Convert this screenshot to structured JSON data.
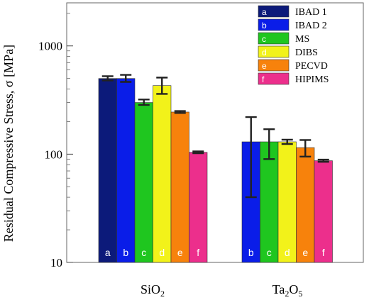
{
  "chart_data": {
    "type": "bar",
    "scale": "log",
    "ylim": [
      10,
      2500
    ],
    "ylabel": "Residual Compressive Stress, σ [MPa]",
    "y_ticks": [
      {
        "value": 10,
        "label": "10"
      },
      {
        "value": 100,
        "label": "100"
      },
      {
        "value": 1000,
        "label": "1000"
      }
    ],
    "categories": [
      {
        "label": "SiO",
        "sub": "2"
      },
      {
        "label": "Ta",
        "sub": "2",
        "label2": "O",
        "sub2": "5"
      }
    ],
    "series": [
      {
        "name": "IBAD 1",
        "code": "a",
        "color": "#0c1a7a",
        "values": [
          500,
          null
        ],
        "err_low": [
          480,
          null
        ],
        "err_high": [
          525,
          null
        ]
      },
      {
        "name": "IBAD 2",
        "code": "b",
        "color": "#0a1de8",
        "values": [
          500,
          130
        ],
        "err_low": [
          465,
          40
        ],
        "err_high": [
          540,
          220
        ]
      },
      {
        "name": "MS",
        "code": "c",
        "color": "#1fc61f",
        "values": [
          300,
          130
        ],
        "err_low": [
          285,
          90
        ],
        "err_high": [
          320,
          170
        ]
      },
      {
        "name": "DIBS",
        "code": "d",
        "color": "#f2f21a",
        "values": [
          430,
          130
        ],
        "err_low": [
          360,
          124
        ],
        "err_high": [
          510,
          136
        ]
      },
      {
        "name": "PECVD",
        "code": "e",
        "color": "#f7820c",
        "values": [
          245,
          115
        ],
        "err_low": [
          240,
          95
        ],
        "err_high": [
          250,
          135
        ]
      },
      {
        "name": "HIPIMS",
        "code": "f",
        "color": "#ec2f8c",
        "values": [
          104,
          87
        ],
        "err_low": [
          102,
          85
        ],
        "err_high": [
          106,
          89
        ]
      }
    ],
    "legend_position": "top-right",
    "grid": false
  }
}
